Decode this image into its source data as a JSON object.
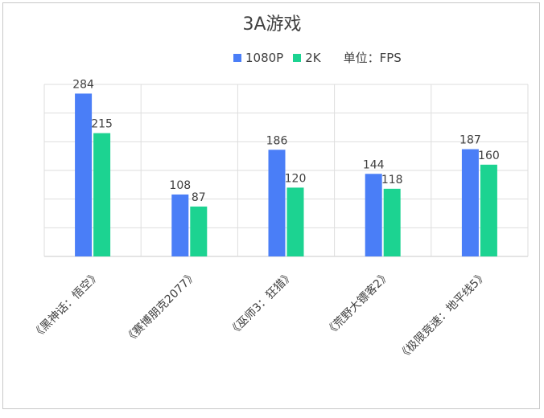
{
  "chart_data": {
    "type": "bar",
    "title": "3A游戏",
    "unit_label": "单位：FPS",
    "categories": [
      "《黑神话：悟空》",
      "《赛博朋克2077》",
      "《巫师3：狂猎》",
      "《荒野大镖客2》",
      "《极限竞速：地平线5》"
    ],
    "series": [
      {
        "name": "1080P",
        "color": "#4a7ef7",
        "values": [
          284,
          108,
          186,
          144,
          187
        ]
      },
      {
        "name": "2K",
        "color": "#1cd391",
        "values": [
          215,
          87,
          120,
          118,
          160
        ]
      }
    ],
    "ylim": [
      0,
      300
    ],
    "grid": true,
    "legend_position": "top"
  }
}
